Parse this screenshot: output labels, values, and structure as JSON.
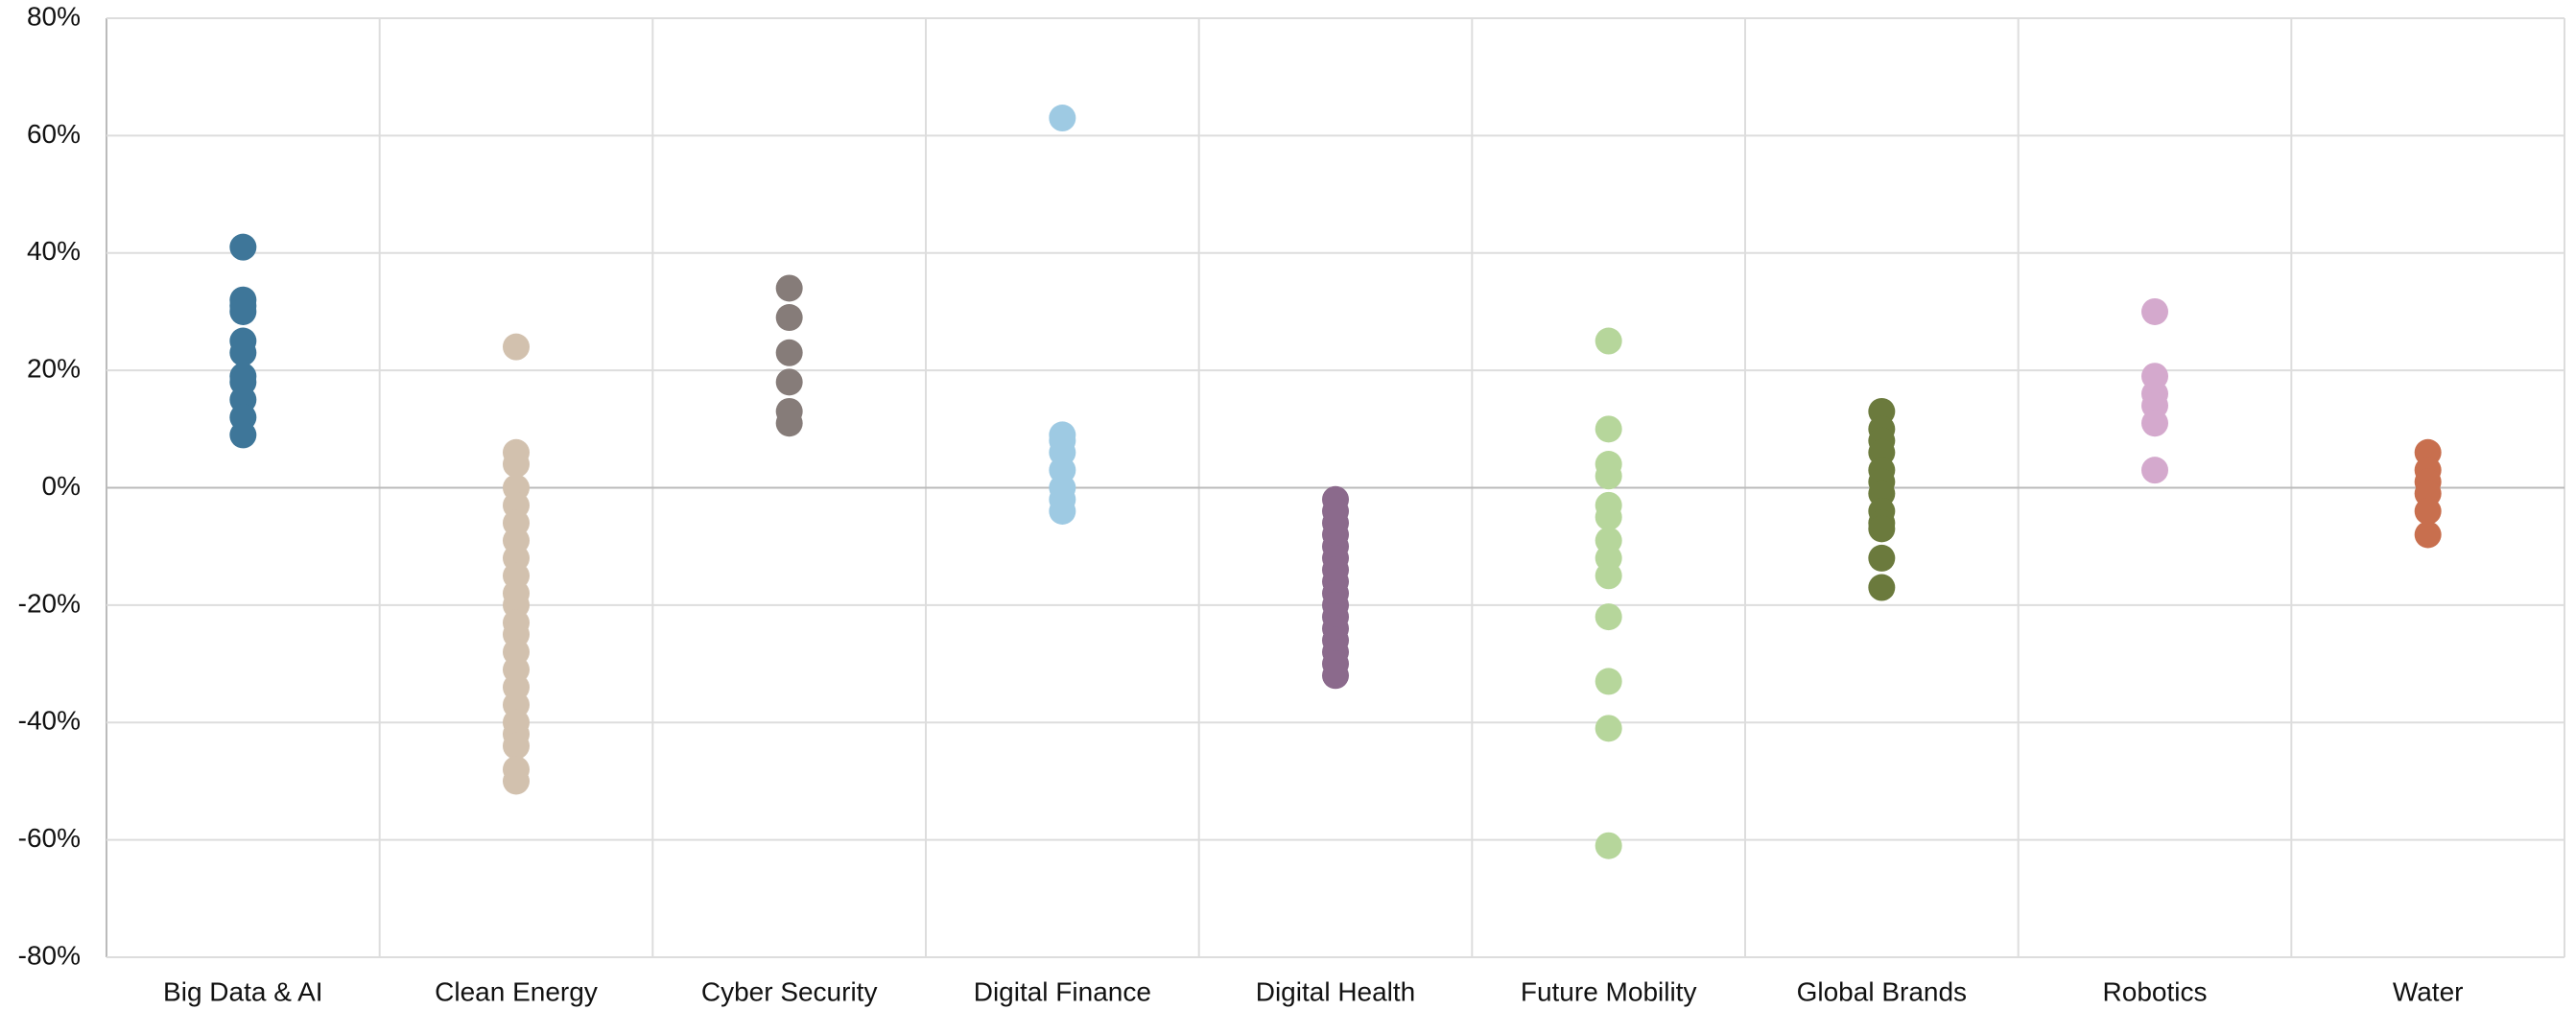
{
  "chart_data": {
    "type": "strip",
    "categories": [
      "Big Data & AI",
      "Clean Energy",
      "Cyber Security",
      "Digital Finance",
      "Digital Health",
      "Future Mobility",
      "Global Brands",
      "Robotics",
      "Water"
    ],
    "colors": [
      "#3e7699",
      "#d2c1ae",
      "#867c79",
      "#9ecae3",
      "#8b6a8c",
      "#b6d69b",
      "#6b7a3d",
      "#d4a9cd",
      "#c86f4e"
    ],
    "values": [
      [
        41,
        32,
        31,
        30,
        25,
        23,
        19,
        18,
        15,
        12,
        9
      ],
      [
        24,
        6,
        4,
        0,
        -3,
        -6,
        -9,
        -12,
        -15,
        -18,
        -20,
        -23,
        -25,
        -28,
        -31,
        -34,
        -37,
        -40,
        -42,
        -44,
        -48,
        -50
      ],
      [
        34,
        29,
        23,
        18,
        13,
        11
      ],
      [
        63,
        9,
        8,
        6,
        3,
        0,
        -2,
        -4
      ],
      [
        -2,
        -4,
        -6,
        -8,
        -10,
        -12,
        -14,
        -16,
        -18,
        -20,
        -22,
        -24,
        -26,
        -28,
        -30,
        -32
      ],
      [
        25,
        10,
        4,
        2,
        -3,
        -5,
        -9,
        -12,
        -15,
        -22,
        -33,
        -41,
        -61
      ],
      [
        13,
        10,
        8,
        6,
        3,
        1,
        -1,
        -4,
        -6,
        -7,
        -12,
        -17
      ],
      [
        30,
        19,
        16,
        14,
        11,
        3
      ],
      [
        6,
        3,
        1,
        -1,
        -4,
        -8
      ]
    ],
    "ylim": [
      -80,
      80
    ],
    "yticks": [
      {
        "value": -80,
        "label": "-80%"
      },
      {
        "value": -60,
        "label": "-60%"
      },
      {
        "value": -40,
        "label": "-40%"
      },
      {
        "value": -20,
        "label": "-20%"
      },
      {
        "value": 0,
        "label": "0%"
      },
      {
        "value": 20,
        "label": "20%"
      },
      {
        "value": 40,
        "label": "40%"
      },
      {
        "value": 60,
        "label": "60%"
      },
      {
        "value": 80,
        "label": "80%"
      }
    ],
    "grid": true
  }
}
